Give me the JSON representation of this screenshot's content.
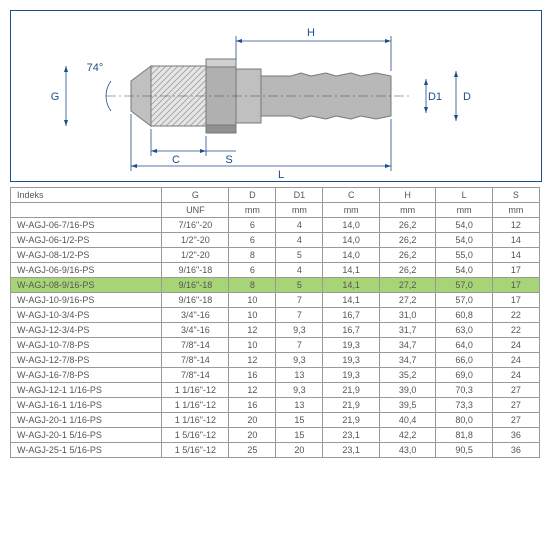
{
  "diagram": {
    "angle_label": "74°",
    "dim_G": "G",
    "dim_D": "D",
    "dim_D1": "D1",
    "dim_C": "C",
    "dim_H": "H",
    "dim_L": "L",
    "dim_S": "S",
    "stroke": "#1e4d8b",
    "fitting_fill": "#b8b8b8",
    "fitting_stroke": "#666"
  },
  "table": {
    "columns": [
      "Indeks",
      "G",
      "D",
      "D1",
      "C",
      "H",
      "L",
      "S"
    ],
    "units": [
      "",
      "UNF",
      "mm",
      "mm",
      "mm",
      "mm",
      "mm",
      "mm"
    ],
    "highlighted_row": 5,
    "rows": [
      [
        "W-AGJ-06-7/16-PS",
        "7/16\"-20",
        "6",
        "4",
        "14,0",
        "26,2",
        "54,0",
        "12"
      ],
      [
        "W-AGJ-06-1/2-PS",
        "1/2\"-20",
        "6",
        "4",
        "14,0",
        "26,2",
        "54,0",
        "14"
      ],
      [
        "W-AGJ-08-1/2-PS",
        "1/2\"-20",
        "8",
        "5",
        "14,0",
        "26,2",
        "55,0",
        "14"
      ],
      [
        "W-AGJ-06-9/16-PS",
        "9/16\"-18",
        "6",
        "4",
        "14,1",
        "26,2",
        "54,0",
        "17"
      ],
      [
        "W-AGJ-08-9/16-PS",
        "9/16\"-18",
        "8",
        "5",
        "14,1",
        "27,2",
        "57,0",
        "17"
      ],
      [
        "W-AGJ-10-9/16-PS",
        "9/16\"-18",
        "10",
        "7",
        "14,1",
        "27,2",
        "57,0",
        "17"
      ],
      [
        "W-AGJ-10-3/4-PS",
        "3/4\"-16",
        "10",
        "7",
        "16,7",
        "31,0",
        "60,8",
        "22"
      ],
      [
        "W-AGJ-12-3/4-PS",
        "3/4\"-16",
        "12",
        "9,3",
        "16,7",
        "31,7",
        "63,0",
        "22"
      ],
      [
        "W-AGJ-10-7/8-PS",
        "7/8\"-14",
        "10",
        "7",
        "19,3",
        "34,7",
        "64,0",
        "24"
      ],
      [
        "W-AGJ-12-7/8-PS",
        "7/8\"-14",
        "12",
        "9,3",
        "19,3",
        "34,7",
        "66,0",
        "24"
      ],
      [
        "W-AGJ-16-7/8-PS",
        "7/8\"-14",
        "16",
        "13",
        "19,3",
        "35,2",
        "69,0",
        "24"
      ],
      [
        "W-AGJ-12-1 1/16-PS",
        "1 1/16\"-12",
        "12",
        "9,3",
        "21,9",
        "39,0",
        "70,3",
        "27"
      ],
      [
        "W-AGJ-16-1 1/16-PS",
        "1 1/16\"-12",
        "16",
        "13",
        "21,9",
        "39,5",
        "73,3",
        "27"
      ],
      [
        "W-AGJ-20-1 1/16-PS",
        "1 1/16\"-12",
        "20",
        "15",
        "21,9",
        "40,4",
        "80,0",
        "27"
      ],
      [
        "W-AGJ-20-1 5/16-PS",
        "1 5/16\"-12",
        "20",
        "15",
        "23,1",
        "42,2",
        "81,8",
        "36"
      ],
      [
        "W-AGJ-25-1 5/16-PS",
        "1 5/16\"-12",
        "25",
        "20",
        "23,1",
        "43,0",
        "90,5",
        "36"
      ]
    ],
    "col_widths": [
      "150px",
      "60px",
      "40px",
      "40px",
      "50px",
      "50px",
      "50px",
      "40px"
    ]
  }
}
